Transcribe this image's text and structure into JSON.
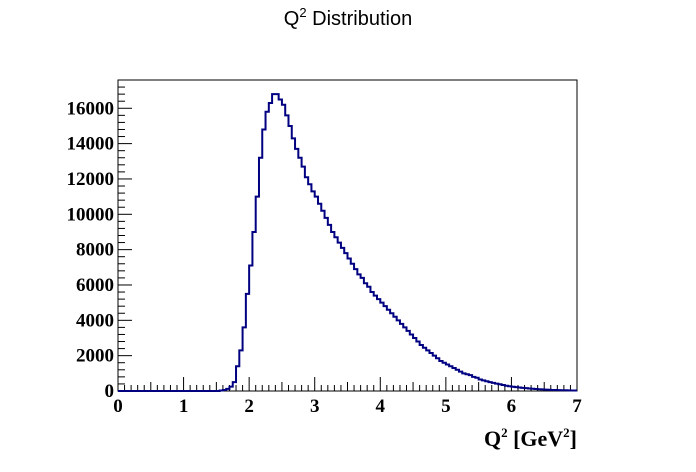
{
  "chart_data": {
    "type": "line",
    "style": "histogram-step",
    "title": {
      "main": "Q",
      "sup": "2",
      "rest": " Distribution"
    },
    "xlabel": {
      "pre": "Q",
      "sup1": "2",
      "mid": " [GeV",
      "sup2": "2",
      "post": "]"
    },
    "ylabel": "",
    "xlim": [
      0,
      7
    ],
    "ylim": [
      0,
      17600
    ],
    "x_ticks": [
      {
        "value": 0,
        "label": "0"
      },
      {
        "value": 1,
        "label": "1"
      },
      {
        "value": 2,
        "label": "2"
      },
      {
        "value": 3,
        "label": "3"
      },
      {
        "value": 4,
        "label": "4"
      },
      {
        "value": 5,
        "label": "5"
      },
      {
        "value": 6,
        "label": "6"
      },
      {
        "value": 7,
        "label": "7"
      }
    ],
    "y_ticks": [
      {
        "value": 0,
        "label": "0"
      },
      {
        "value": 2000,
        "label": "2000"
      },
      {
        "value": 4000,
        "label": "4000"
      },
      {
        "value": 6000,
        "label": "6000"
      },
      {
        "value": 8000,
        "label": "8000"
      },
      {
        "value": 10000,
        "label": "10000"
      },
      {
        "value": 12000,
        "label": "12000"
      },
      {
        "value": 14000,
        "label": "14000"
      },
      {
        "value": 16000,
        "label": "16000"
      }
    ],
    "grid": false,
    "legend": "none",
    "line_color": "#000080",
    "bin_width": 0.05,
    "series": [
      {
        "bins_from": 0,
        "values": [
          0,
          0,
          0,
          0,
          0,
          0,
          0,
          0,
          0,
          0,
          0,
          0,
          0,
          0,
          0,
          0,
          0,
          0,
          0,
          0,
          0,
          0,
          0,
          0,
          0,
          0,
          0,
          0,
          0,
          0,
          0,
          30,
          60,
          120,
          250,
          500,
          1400,
          2300,
          3600,
          5500,
          7100,
          9000,
          11000,
          13200,
          14800,
          15800,
          16300,
          16800,
          16800,
          16500,
          16200,
          15600,
          15000,
          14300,
          13700,
          13200,
          12700,
          12100,
          11700,
          11300,
          11000,
          10600,
          10200,
          9800,
          9400,
          9000,
          8700,
          8400,
          8100,
          7800,
          7500,
          7200,
          6900,
          6600,
          6400,
          6100,
          5900,
          5600,
          5400,
          5200,
          5000,
          4800,
          4600,
          4400,
          4200,
          4000,
          3800,
          3600,
          3400,
          3200,
          3000,
          2800,
          2600,
          2450,
          2300,
          2150,
          2000,
          1850,
          1700,
          1600,
          1500,
          1400,
          1300,
          1200,
          1100,
          1000,
          950,
          900,
          800,
          750,
          650,
          600,
          550,
          500,
          460,
          420,
          380,
          340,
          300,
          270,
          240,
          220,
          200,
          180,
          160,
          140,
          125,
          110,
          100,
          90,
          80,
          70,
          60,
          55,
          50,
          45,
          40,
          35,
          30,
          28,
          25,
          22,
          20
        ]
      }
    ]
  }
}
